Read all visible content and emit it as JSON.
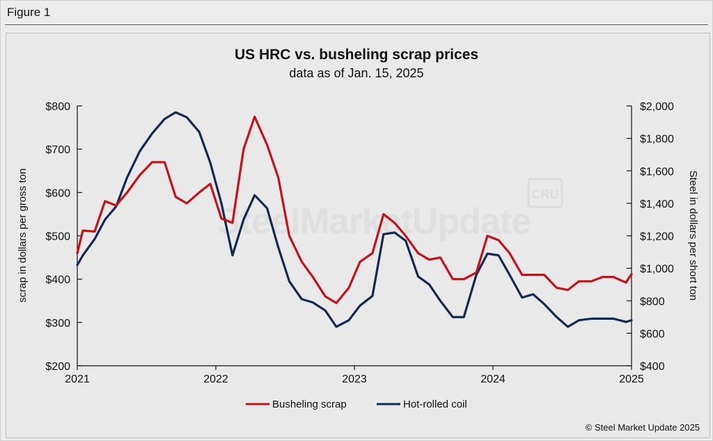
{
  "figure_label": "Figure 1",
  "colors": {
    "scrap": "#c4121a",
    "hrc": "#13294f",
    "axis": "#111111"
  },
  "watermark": {
    "text": "SteelMarketUpdate",
    "badge": "CRU"
  },
  "credit": "© Steel Market Update 2025",
  "chart_data": {
    "type": "line",
    "title": "US HRC vs. busheling scrap prices",
    "subtitle": "data as of Jan. 15, 2025",
    "x_ticks": [
      "2021",
      "2022",
      "2023",
      "2024",
      "2025"
    ],
    "xlim": [
      2021,
      2025
    ],
    "y_left": {
      "label": "scrap in dollars per gross ton",
      "lim": [
        200,
        800
      ],
      "ticks": [
        "$200",
        "$300",
        "$400",
        "$500",
        "$600",
        "$700",
        "$800"
      ]
    },
    "y_right": {
      "label": "Steel in dollars per short ton",
      "lim": [
        400,
        2000
      ],
      "ticks": [
        "$400",
        "$600",
        "$800",
        "$1,000",
        "$1,200",
        "$1,400",
        "$1,600",
        "$1,800",
        "$2,000"
      ]
    },
    "legend": [
      "Busheling scrap",
      "Hot-rolled coil"
    ],
    "legend_position": "bottom",
    "series": [
      {
        "name": "Busheling scrap",
        "axis": "left",
        "x": [
          2021.0,
          2021.04,
          2021.125,
          2021.2,
          2021.28,
          2021.36,
          2021.45,
          2021.54,
          2021.63,
          2021.71,
          2021.79,
          2021.88,
          2021.96,
          2022.04,
          2022.12,
          2022.2,
          2022.28,
          2022.37,
          2022.45,
          2022.53,
          2022.62,
          2022.7,
          2022.79,
          2022.87,
          2022.96,
          2023.04,
          2023.13,
          2023.21,
          2023.29,
          2023.37,
          2023.46,
          2023.54,
          2023.62,
          2023.71,
          2023.79,
          2023.88,
          2023.96,
          2024.04,
          2024.12,
          2024.21,
          2024.29,
          2024.37,
          2024.46,
          2024.54,
          2024.62,
          2024.71,
          2024.79,
          2024.87,
          2024.96,
          2025.0
        ],
        "values": [
          460,
          512,
          510,
          580,
          570,
          600,
          640,
          670,
          670,
          590,
          575,
          600,
          620,
          540,
          530,
          700,
          775,
          710,
          635,
          500,
          440,
          405,
          360,
          345,
          380,
          440,
          460,
          550,
          530,
          500,
          460,
          445,
          450,
          400,
          400,
          415,
          500,
          490,
          460,
          410,
          410,
          410,
          380,
          375,
          395,
          395,
          405,
          405,
          392,
          412
        ]
      },
      {
        "name": "Hot-rolled coil",
        "axis": "right",
        "x": [
          2021.0,
          2021.04,
          2021.125,
          2021.2,
          2021.28,
          2021.36,
          2021.45,
          2021.54,
          2021.63,
          2021.71,
          2021.79,
          2021.88,
          2021.96,
          2022.04,
          2022.12,
          2022.2,
          2022.28,
          2022.37,
          2022.45,
          2022.53,
          2022.62,
          2022.7,
          2022.79,
          2022.87,
          2022.96,
          2023.04,
          2023.13,
          2023.21,
          2023.29,
          2023.37,
          2023.46,
          2023.54,
          2023.62,
          2023.71,
          2023.79,
          2023.88,
          2023.96,
          2024.04,
          2024.12,
          2024.21,
          2024.29,
          2024.37,
          2024.46,
          2024.54,
          2024.62,
          2024.71,
          2024.79,
          2024.87,
          2024.96,
          2025.0
        ],
        "values": [
          1020,
          1080,
          1180,
          1300,
          1380,
          1560,
          1720,
          1830,
          1920,
          1960,
          1930,
          1840,
          1650,
          1400,
          1080,
          1300,
          1450,
          1370,
          1130,
          920,
          810,
          790,
          740,
          640,
          680,
          770,
          830,
          1210,
          1220,
          1170,
          950,
          900,
          800,
          700,
          700,
          960,
          1090,
          1080,
          960,
          820,
          840,
          780,
          700,
          640,
          680,
          690,
          690,
          690,
          670,
          680
        ]
      }
    ]
  }
}
